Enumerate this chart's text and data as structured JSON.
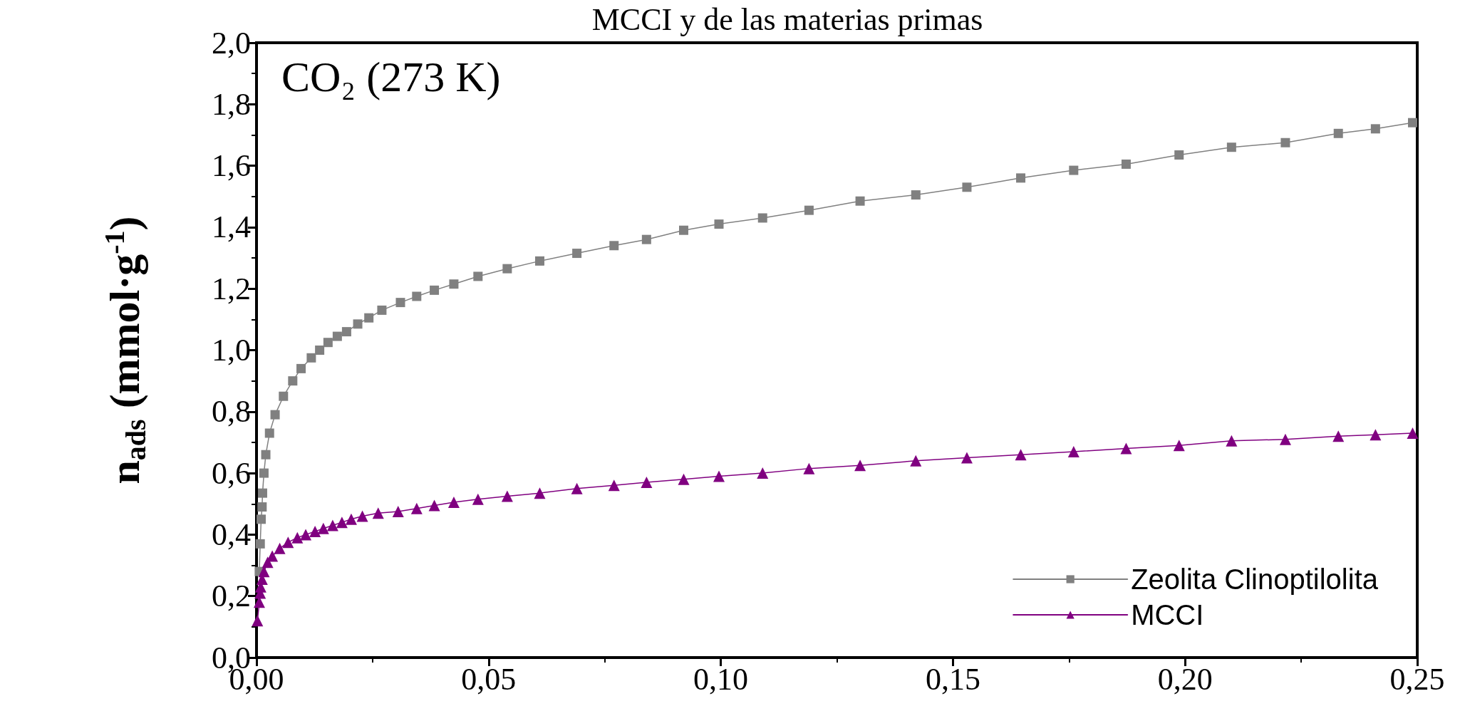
{
  "chart_data": {
    "type": "line",
    "title": "MCCI y de las materias primas",
    "ylabel": "n$_{ads}$ (mmol·g$^{-1}$)",
    "annotations": [
      "CO₂ (273 K)"
    ],
    "xlim": [
      0,
      0.25
    ],
    "ylim": [
      0,
      2.0
    ],
    "xticks": [
      {
        "value": 0,
        "label": "0,00"
      },
      {
        "value": 0.05,
        "label": "0,05"
      },
      {
        "value": 0.1,
        "label": "0,10"
      },
      {
        "value": 0.15,
        "label": "0,15"
      },
      {
        "value": 0.2,
        "label": "0,20"
      },
      {
        "value": 0.25,
        "label": "0,25"
      }
    ],
    "yticks": [
      {
        "value": 0,
        "label": "0,0"
      },
      {
        "value": 0.2,
        "label": "0,2"
      },
      {
        "value": 0.4,
        "label": "0,4"
      },
      {
        "value": 0.6,
        "label": "0,6"
      },
      {
        "value": 0.8,
        "label": "0,8"
      },
      {
        "value": 1.0,
        "label": "1,0"
      },
      {
        "value": 1.2,
        "label": "1,2"
      },
      {
        "value": 1.4,
        "label": "1,4"
      },
      {
        "value": 1.6,
        "label": "1,6"
      },
      {
        "value": 1.8,
        "label": "1,8"
      },
      {
        "value": 2.0,
        "label": "2,0"
      }
    ],
    "grid": false,
    "legend": "bottom right",
    "line_style": "solid",
    "series": [
      {
        "name": "Zeolita Clinoptilolita",
        "color": "#808080",
        "marker": "square",
        "x": [
          0.0006,
          0.0008,
          0.001,
          0.0012,
          0.0013,
          0.0016,
          0.002,
          0.0028,
          0.004,
          0.0058,
          0.0078,
          0.0096,
          0.0118,
          0.0136,
          0.0154,
          0.0174,
          0.0194,
          0.0218,
          0.0242,
          0.027,
          0.031,
          0.0345,
          0.0383,
          0.0425,
          0.0477,
          0.054,
          0.061,
          0.069,
          0.077,
          0.084,
          0.092,
          0.0996,
          0.109,
          0.119,
          0.13,
          0.142,
          0.153,
          0.1646,
          0.176,
          0.1873,
          0.1987,
          0.21,
          0.2216,
          0.233,
          0.241,
          0.249
        ],
        "values": [
          0.28,
          0.37,
          0.45,
          0.49,
          0.535,
          0.6,
          0.66,
          0.73,
          0.79,
          0.85,
          0.9,
          0.94,
          0.975,
          1.0,
          1.025,
          1.045,
          1.06,
          1.085,
          1.105,
          1.13,
          1.155,
          1.175,
          1.195,
          1.215,
          1.24,
          1.265,
          1.29,
          1.315,
          1.34,
          1.36,
          1.39,
          1.41,
          1.43,
          1.455,
          1.485,
          1.505,
          1.53,
          1.56,
          1.585,
          1.605,
          1.635,
          1.66,
          1.675,
          1.705,
          1.72,
          1.74
        ]
      },
      {
        "name": "MCCI",
        "color": "#800080",
        "marker": "triangle",
        "x": [
          0.0002,
          0.0006,
          0.0008,
          0.0009,
          0.0012,
          0.0016,
          0.0024,
          0.0034,
          0.005,
          0.0068,
          0.0088,
          0.0106,
          0.0126,
          0.0144,
          0.0164,
          0.0184,
          0.0204,
          0.0228,
          0.0262,
          0.0305,
          0.0345,
          0.0383,
          0.0425,
          0.0477,
          0.054,
          0.061,
          0.069,
          0.077,
          0.084,
          0.092,
          0.0996,
          0.109,
          0.119,
          0.13,
          0.142,
          0.153,
          0.1646,
          0.176,
          0.1873,
          0.1987,
          0.21,
          0.2216,
          0.233,
          0.241,
          0.249
        ],
        "values": [
          0.12,
          0.18,
          0.21,
          0.23,
          0.255,
          0.28,
          0.31,
          0.33,
          0.355,
          0.375,
          0.39,
          0.4,
          0.41,
          0.42,
          0.43,
          0.44,
          0.45,
          0.46,
          0.47,
          0.475,
          0.485,
          0.495,
          0.505,
          0.515,
          0.525,
          0.535,
          0.55,
          0.56,
          0.57,
          0.58,
          0.59,
          0.6,
          0.615,
          0.625,
          0.64,
          0.65,
          0.66,
          0.67,
          0.68,
          0.69,
          0.705,
          0.71,
          0.72,
          0.725,
          0.73
        ]
      }
    ]
  }
}
